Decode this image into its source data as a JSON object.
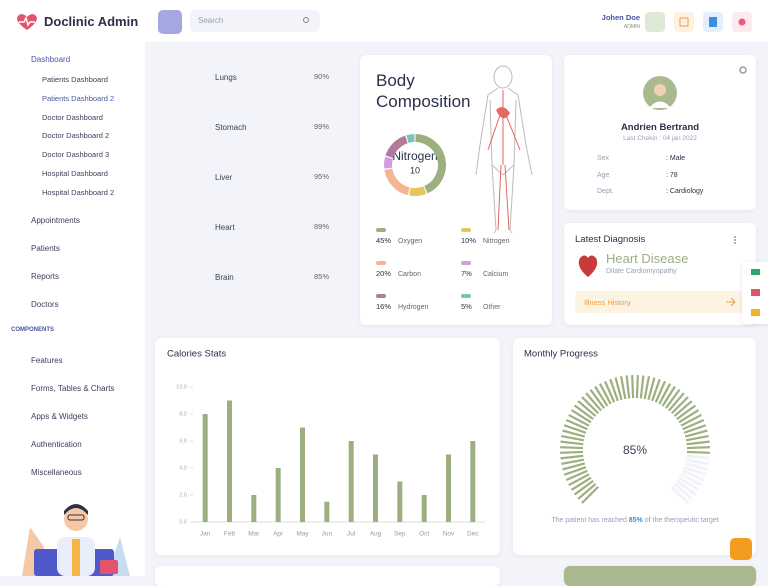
{
  "brand": "Doclinic Admin",
  "search": "Search",
  "user": {
    "name": "Johen Doe",
    "role": "ADMIN"
  },
  "sidebar": {
    "menu": [
      {
        "label": "Dashboard",
        "open": true,
        "children": [
          "Patients Dashboard",
          "Patients Dashboard 2",
          "Doctor Dashboard",
          "Doctor Dashboard 2",
          "Doctor Dashboard 3",
          "Hospital Dashboard",
          "Hospital Dashboard 2"
        ]
      },
      {
        "label": "Appointments",
        "arrow": false
      },
      {
        "label": "Patients",
        "arrow": true
      },
      {
        "label": "Reports",
        "arrow": false
      },
      {
        "label": "Doctors",
        "arrow": true
      }
    ],
    "section": "COMPONENTS",
    "components": [
      {
        "label": "Features",
        "arrow": true
      },
      {
        "label": "Forms, Tables & Charts",
        "arrow": true
      },
      {
        "label": "Apps & Widgets",
        "arrow": true
      },
      {
        "label": "Authentication",
        "arrow": true
      },
      {
        "label": "Miscellaneous",
        "arrow": true
      }
    ]
  },
  "organs": [
    {
      "name": "Lungs",
      "value": 90,
      "label": "90%"
    },
    {
      "name": "Stomach",
      "value": 99,
      "label": "99%"
    },
    {
      "name": "Liver",
      "value": 95,
      "label": "95%"
    },
    {
      "name": "Heart",
      "value": 89,
      "label": "89%"
    },
    {
      "name": "Brain",
      "value": 85,
      "label": "85%"
    }
  ],
  "body_composition": {
    "title": "Body Composition",
    "center_name": "Nitrogen",
    "center_value": 10,
    "items": [
      {
        "value": 45,
        "label": "45%",
        "name": "Oxygen",
        "color": "#9caf7f"
      },
      {
        "value": 10,
        "label": "10%",
        "name": "Nitrogen",
        "color": "#e3c65e"
      },
      {
        "value": 20,
        "label": "20%",
        "name": "Carbon",
        "color": "#f4b592"
      },
      {
        "value": 7,
        "label": "7%",
        "name": "Calcium",
        "color": "#d59be0"
      },
      {
        "value": 16,
        "label": "16%",
        "name": "Hydrogen",
        "color": "#b3799d"
      },
      {
        "value": 5,
        "label": "5%",
        "name": "Other",
        "color": "#7fc3b6"
      }
    ]
  },
  "patient": {
    "name": "Andrien Bertrand",
    "checkin": "Last Chekin : 04 jan 2022",
    "fields": [
      {
        "key": "Sex",
        "value": ": Male"
      },
      {
        "key": "Age",
        "value": ": 78"
      },
      {
        "key": "Dept.",
        "value": ": Cardiology"
      }
    ]
  },
  "diagnosis": {
    "title": "Latest Diagnosis",
    "disease": "Heart Disease",
    "detail": "Dilate Cardiomyopathy",
    "link": "Illness History"
  },
  "calories": {
    "type": "bar",
    "title": "Calories Stats",
    "categories": [
      "Jan",
      "Feb",
      "Mar",
      "Apr",
      "May",
      "Jun",
      "Jul",
      "Aug",
      "Sep",
      "Oct",
      "Nov",
      "Dec"
    ],
    "values": [
      8,
      9,
      2,
      4,
      7,
      1.5,
      6,
      5,
      3,
      2,
      5,
      6
    ],
    "color": "#9caf7f",
    "ylim": [
      0,
      10
    ],
    "yticks": [
      {
        "value": 0,
        "label": "0.0"
      },
      {
        "value": 2,
        "label": "2.0"
      },
      {
        "value": 4,
        "label": "4.0"
      },
      {
        "value": 6,
        "label": "6.0"
      },
      {
        "value": 8,
        "label": "8.0"
      },
      {
        "value": 10,
        "label": "10.0"
      }
    ]
  },
  "progress": {
    "title": "Monthly Progress",
    "value": 85,
    "label": "85%",
    "caption": {
      "before": "The patient has reached",
      "highlight": "85%",
      "after": "of the theropeutic target"
    }
  }
}
